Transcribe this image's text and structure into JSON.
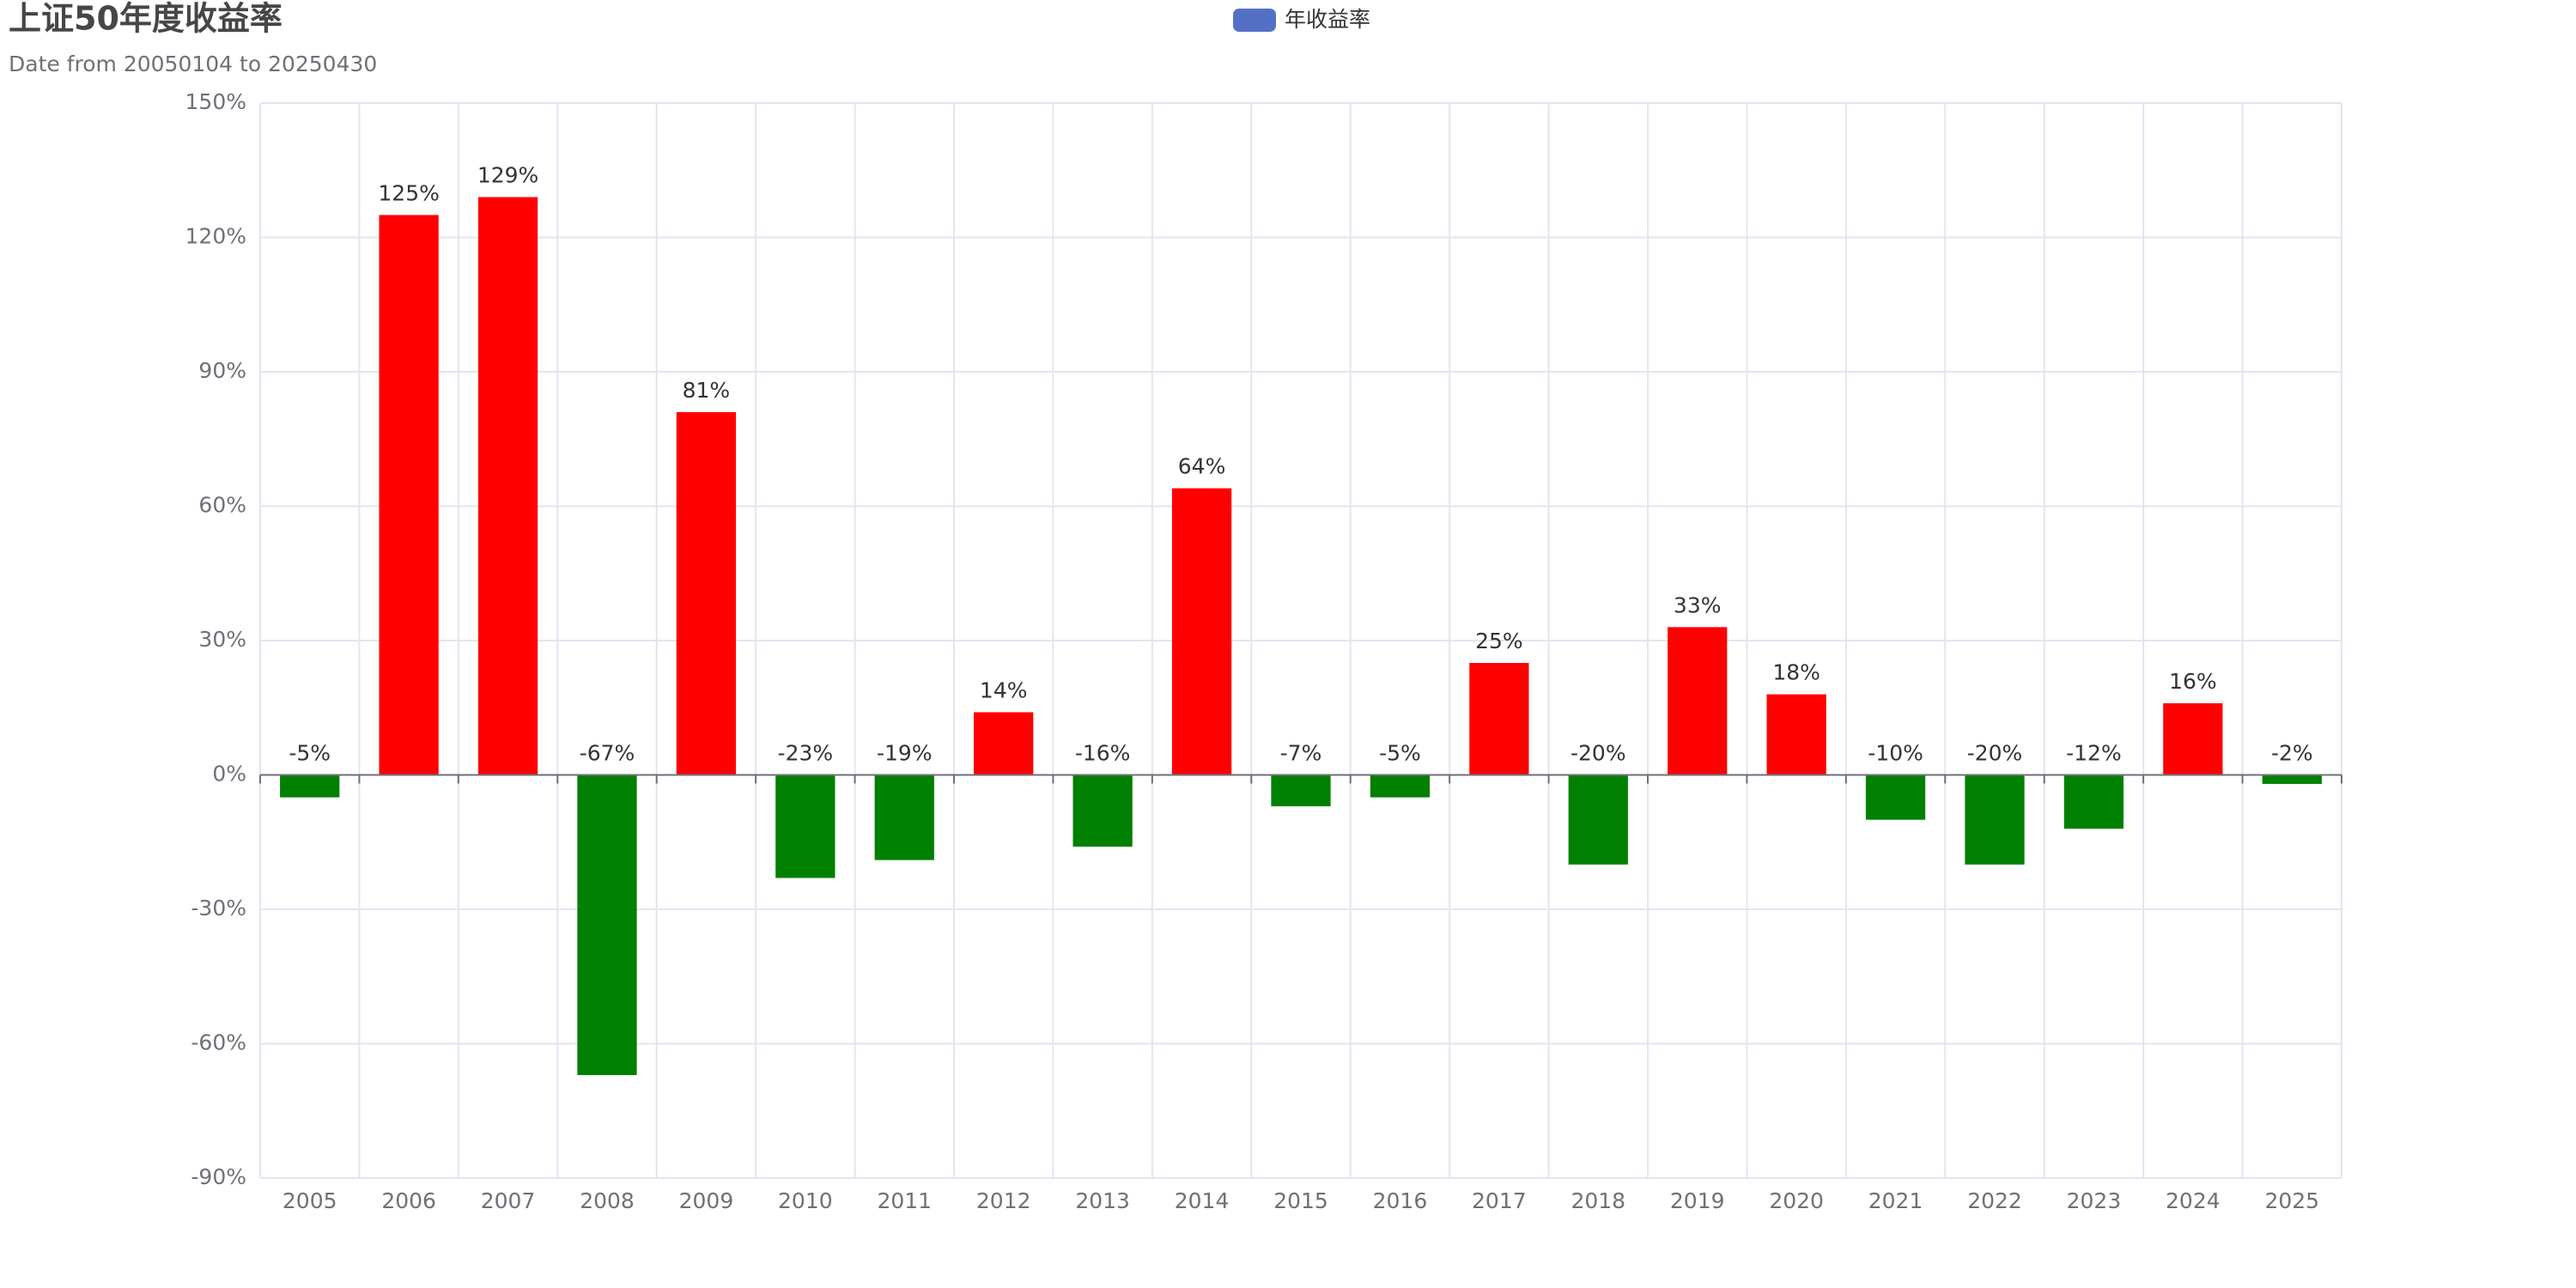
{
  "chart_data": {
    "type": "bar",
    "title": "上证50年度收益率",
    "subtitle": "Date from 20050104 to 20250430",
    "categories": [
      "2005",
      "2006",
      "2007",
      "2008",
      "2009",
      "2010",
      "2011",
      "2012",
      "2013",
      "2014",
      "2015",
      "2016",
      "2017",
      "2018",
      "2019",
      "2020",
      "2021",
      "2022",
      "2023",
      "2024",
      "2025"
    ],
    "series": [
      {
        "name": "年收益率",
        "color": "#5470c6",
        "values": [
          -5,
          125,
          129,
          -67,
          81,
          -23,
          -19,
          14,
          -16,
          64,
          -7,
          -5,
          25,
          -20,
          33,
          18,
          -10,
          -20,
          -12,
          16,
          -2
        ],
        "value_labels": [
          "-5%",
          "125%",
          "129%",
          "-67%",
          "81%",
          "-23%",
          "-19%",
          "14%",
          "-16%",
          "64%",
          "-7%",
          "-5%",
          "25%",
          "-20%",
          "33%",
          "18%",
          "-10%",
          "-20%",
          "-12%",
          "16%",
          "-2%"
        ]
      }
    ],
    "positive_color": "red",
    "negative_color": "green",
    "ylim": [
      -90,
      150
    ],
    "yticks": [
      {
        "value": -90,
        "label": "-90%"
      },
      {
        "value": -60,
        "label": "-60%"
      },
      {
        "value": -30,
        "label": "-30%"
      },
      {
        "value": 0,
        "label": "0%"
      },
      {
        "value": 30,
        "label": "30%"
      },
      {
        "value": 60,
        "label": "60%"
      },
      {
        "value": 90,
        "label": "90%"
      },
      {
        "value": 120,
        "label": "120%"
      },
      {
        "value": 150,
        "label": "150%"
      }
    ],
    "grid": true,
    "legend": "top"
  }
}
